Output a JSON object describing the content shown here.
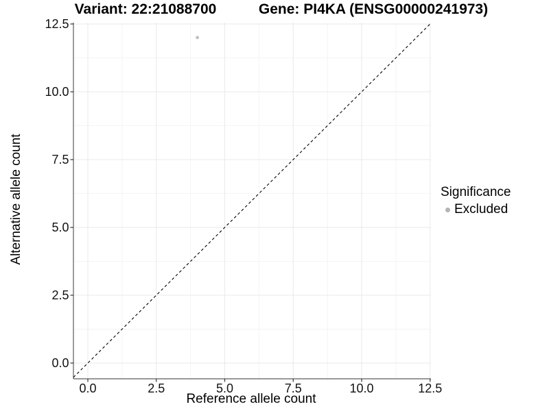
{
  "titles": {
    "variant": "Variant: 22:21088700",
    "gene": "Gene: PI4KA (ENSG00000241973)"
  },
  "legend": {
    "title": "Significance",
    "items": [
      {
        "label": "Excluded",
        "color": "#b4b4b4"
      }
    ]
  },
  "colors": {
    "point": "#c0c0c0",
    "legend_dot": "#b4b4b4",
    "grid_major": "#e9e9e9",
    "grid_minor": "#f4f4f4",
    "axis_line": "#5a5a5a",
    "tick_mark": "#333333",
    "dashed_line": "#000000",
    "text": "#000000",
    "background": "#ffffff"
  },
  "chart_data": {
    "type": "scatter",
    "title": "Variant: 22:21088700 | Gene: PI4KA (ENSG00000241973)",
    "xlabel": "Reference allele count",
    "ylabel": "Alternative allele count",
    "xlim": [
      -0.53,
      12.54
    ],
    "ylim": [
      -0.58,
      12.55
    ],
    "x_ticks": [
      0.0,
      2.5,
      5.0,
      7.5,
      10.0,
      12.5
    ],
    "y_ticks": [
      0.0,
      2.5,
      5.0,
      7.5,
      10.0,
      12.5
    ],
    "x_tick_labels": [
      "0.0",
      "2.5",
      "5.0",
      "7.5",
      "10.0",
      "12.5"
    ],
    "y_tick_labels": [
      "0.0",
      "2.5",
      "5.0",
      "7.5",
      "10.0",
      "12.5"
    ],
    "grid": true,
    "grid_minor": true,
    "legend_position": "right",
    "legend_title": "Significance",
    "series": [
      {
        "name": "Excluded",
        "color": "#c0c0c0",
        "marker": "circle",
        "points": [
          {
            "x": 4,
            "y": 12
          }
        ]
      }
    ],
    "reference_line": {
      "type": "identity-diagonal",
      "equation": "y = x",
      "style": "dashed",
      "color": "#000000"
    }
  }
}
